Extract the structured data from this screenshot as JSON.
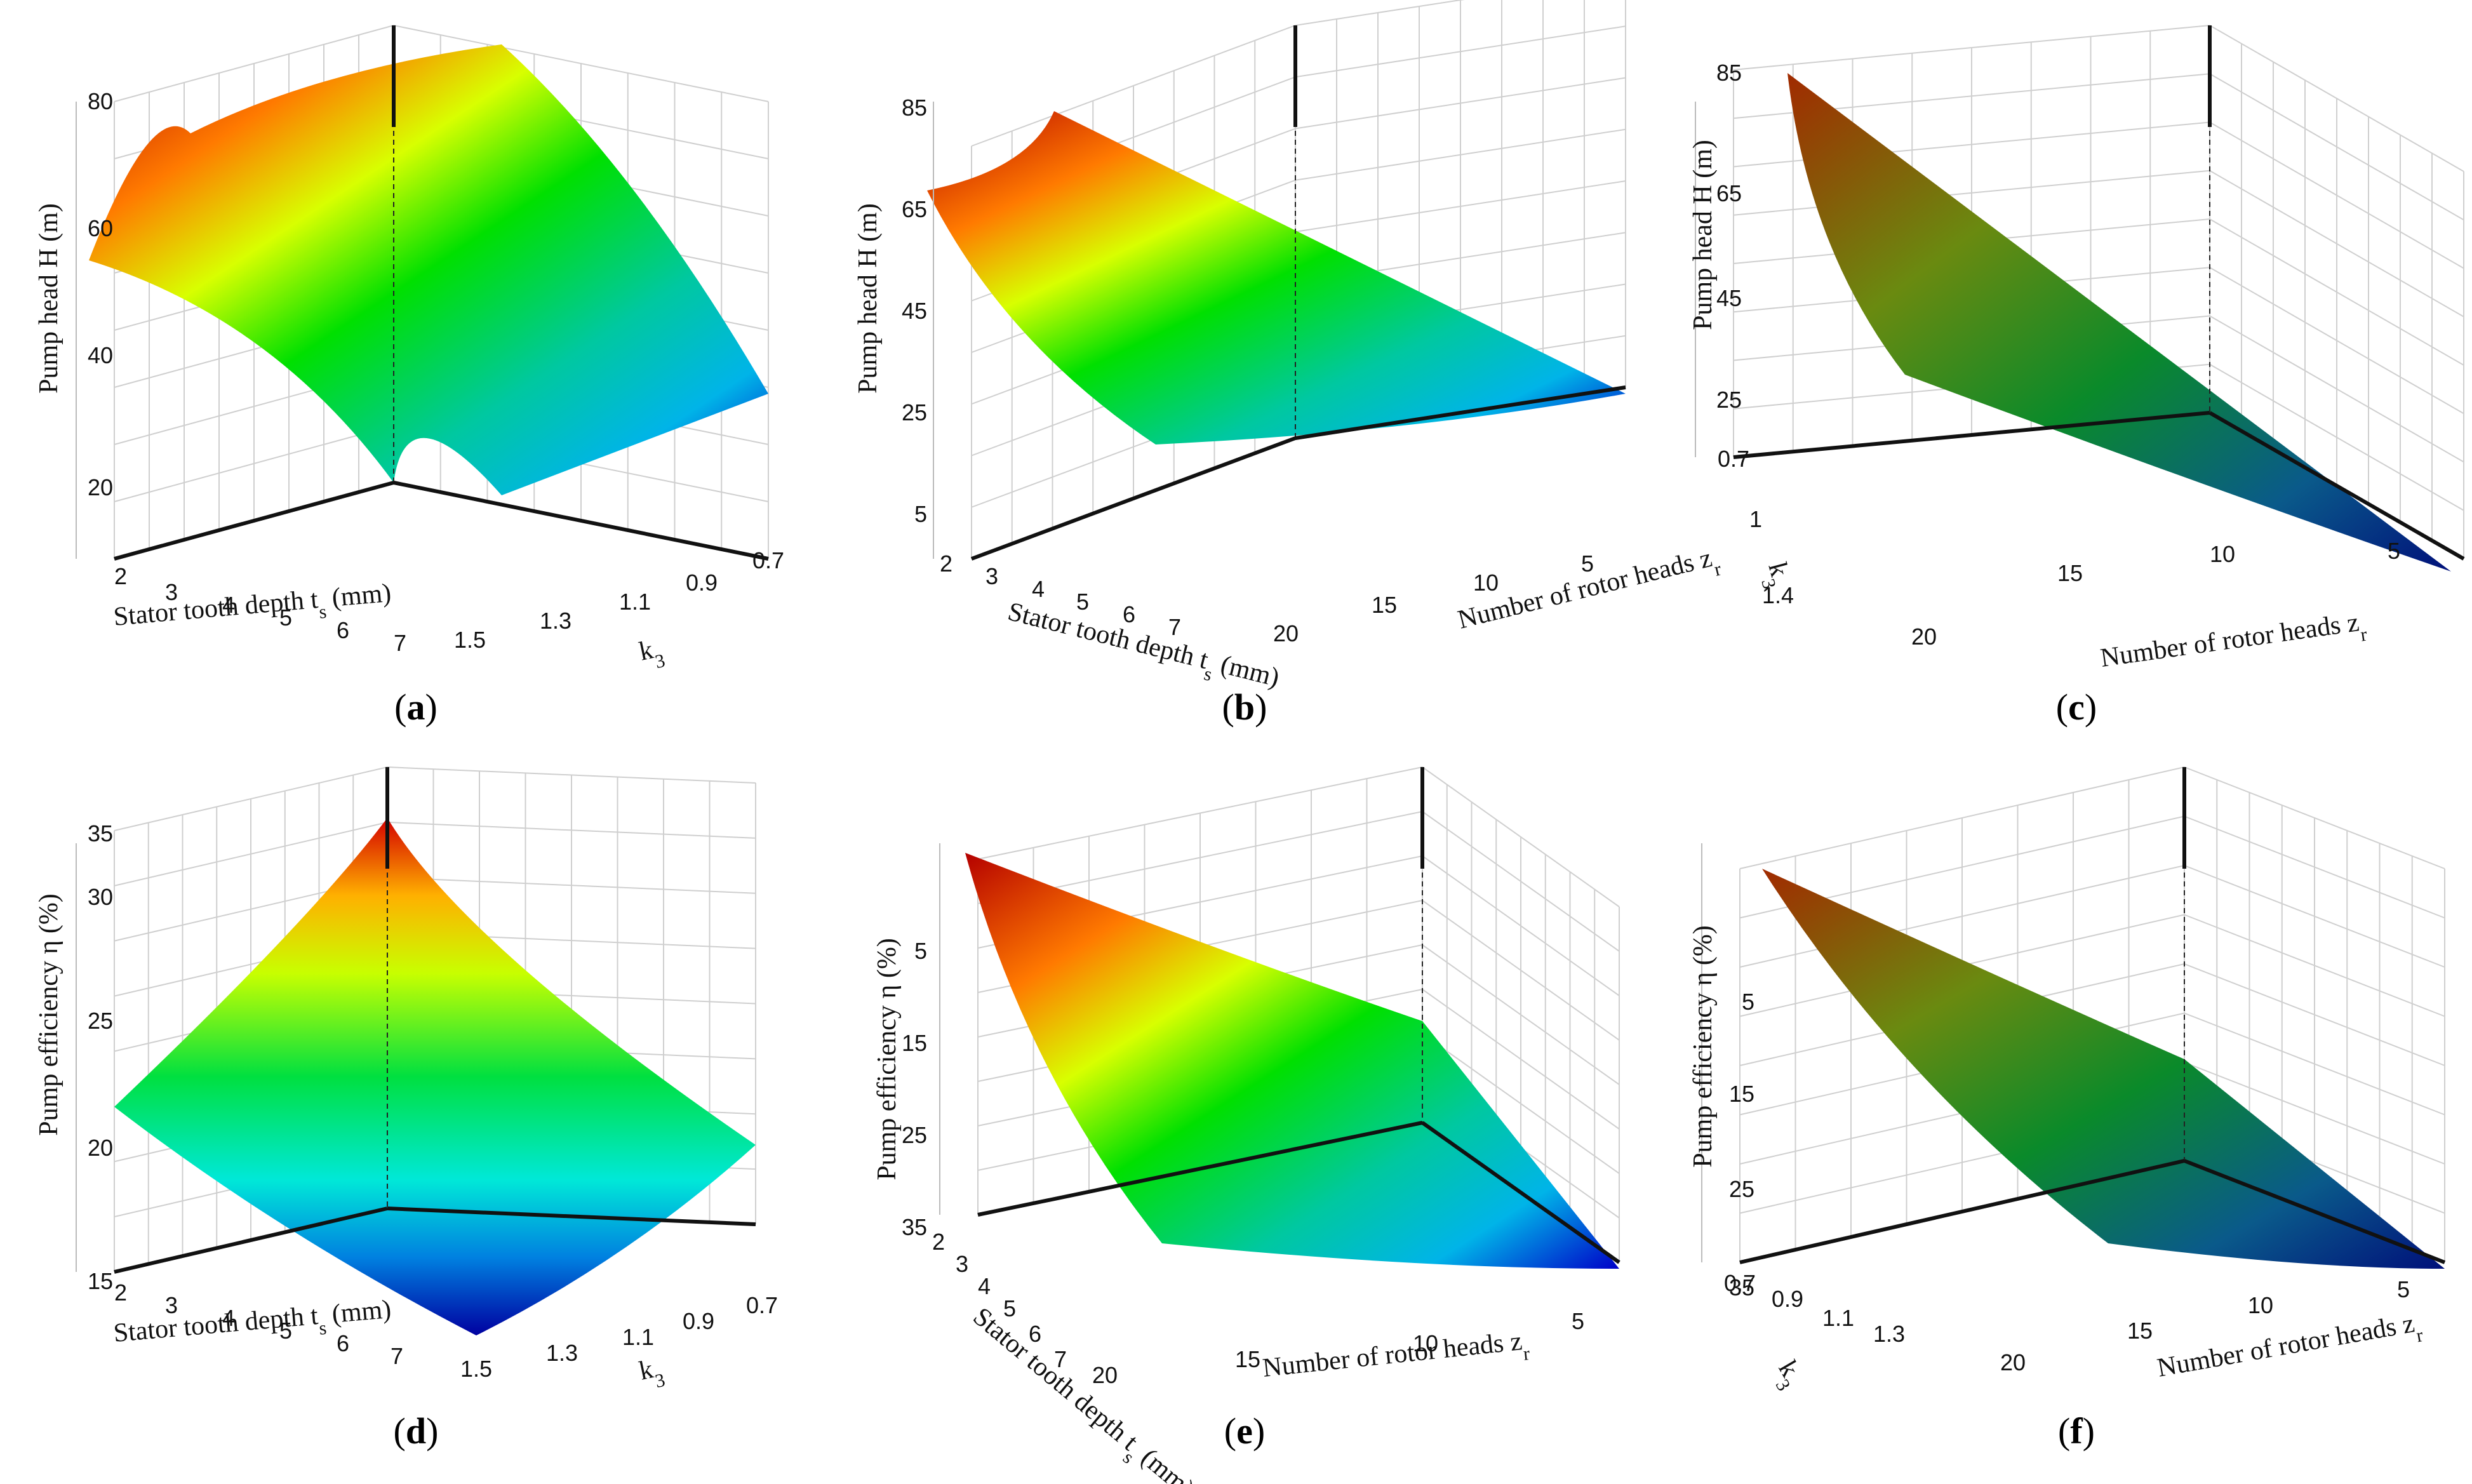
{
  "chart_data": [
    {
      "panel": "a",
      "type": "surface",
      "caption_letter": "a",
      "zlabel": "Pump head H (m)",
      "x_label_main": "Stator tooth depth t",
      "x_label_sub": "s",
      "x_label_tail": " (mm)",
      "y_label_main": "k",
      "y_label_sub": "3",
      "y_label_tail": "",
      "x_ticks": [
        "2",
        "3",
        "4",
        "5",
        "6",
        "7"
      ],
      "y_ticks": [
        "1.5",
        "1.3",
        "1.1",
        "0.9",
        "0.7"
      ],
      "z_ticks": [
        "20",
        "40",
        "60",
        "80"
      ],
      "x_range": [
        2,
        7.5
      ],
      "y_range": [
        1.5,
        0.7
      ],
      "z_range": [
        12,
        88
      ],
      "colormap": "rainbow",
      "summary": "Head rises with k3 toward ~85 m near k3=0.9 at small t_s, falling to ~20 m at large t_s and high k3"
    },
    {
      "panel": "b",
      "type": "surface",
      "caption_letter": "b",
      "zlabel": "Pump head H (m)",
      "x_label_main": "Stator tooth depth t",
      "x_label_sub": "s",
      "x_label_tail": " (mm)",
      "y_label_main": "Number of rotor heads z",
      "y_label_sub": "r",
      "y_label_tail": "",
      "x_ticks": [
        "2",
        "3",
        "4",
        "5",
        "6",
        "7"
      ],
      "y_ticks": [
        "20",
        "15",
        "10",
        "5"
      ],
      "z_ticks": [
        "5",
        "25",
        "45",
        "65",
        "85"
      ],
      "x_range": [
        2,
        7.5
      ],
      "y_range": [
        20,
        3
      ],
      "z_range": [
        0,
        90
      ],
      "colormap": "rainbow",
      "summary": "Head peaks ~85 m at small t_s and few rotor heads, decreasing toward ~25 m"
    },
    {
      "panel": "c",
      "type": "surface",
      "caption_letter": "c",
      "zlabel": "Pump head H (m)",
      "x_label_main": "k",
      "x_label_sub": "3",
      "x_label_tail": "",
      "y_label_main": "Number of rotor heads z",
      "y_label_sub": "r",
      "y_label_tail": "",
      "x_ticks": [
        "0.7",
        "1",
        "1.4"
      ],
      "y_ticks": [
        "20",
        "15",
        "10",
        "5"
      ],
      "z_ticks": [
        "25",
        "45",
        "65",
        "85"
      ],
      "x_range": [
        0.7,
        1.5
      ],
      "y_range": [
        20,
        3
      ],
      "z_range": [
        15,
        88
      ],
      "colormap": "dark-rainbow",
      "summary": "Near-planar surface from ~85 m down to ~10 m"
    },
    {
      "panel": "d",
      "type": "surface",
      "caption_letter": "d",
      "zlabel": "Pump efficiency η (%)",
      "x_label_main": "Stator tooth depth t",
      "x_label_sub": "s",
      "x_label_tail": " (mm)",
      "y_label_main": "k",
      "y_label_sub": "3",
      "y_label_tail": "",
      "x_ticks": [
        "2",
        "3",
        "4",
        "5",
        "6",
        "7"
      ],
      "y_ticks": [
        "1.5",
        "1.3",
        "1.1",
        "0.9",
        "0.7"
      ],
      "z_ticks": [
        "15",
        "20",
        "25",
        "30",
        "35"
      ],
      "x_range": [
        2,
        7.5
      ],
      "y_range": [
        1.5,
        0.7
      ],
      "z_range": [
        11,
        38
      ],
      "colormap": "rainbow",
      "summary": "Saddle-like surface peaking ~38% at back corner, ~11% at front corner"
    },
    {
      "panel": "e",
      "type": "surface",
      "caption_letter": "e",
      "zlabel": "Pump efficiency η (%)",
      "x_label_main": "Stator tooth depth t",
      "x_label_sub": "s",
      "x_label_tail": " (mm)",
      "y_label_main": "Number of rotor heads z",
      "y_label_sub": "r",
      "y_label_tail": "",
      "x_ticks": [
        "2",
        "3",
        "4",
        "5",
        "6",
        "7"
      ],
      "y_ticks": [
        "20",
        "15",
        "10",
        "5"
      ],
      "z_ticks": [
        "5",
        "15",
        "25",
        "35"
      ],
      "x_range": [
        2,
        7.5
      ],
      "y_range": [
        20,
        3
      ],
      "z_range": [
        0,
        40
      ],
      "colormap": "rainbow",
      "summary": "Efficiency ~40% at small t_s & z_r=20, dropping near 0 at large t_s"
    },
    {
      "panel": "f",
      "type": "surface",
      "caption_letter": "f",
      "zlabel": "Pump efficiency  η (%)",
      "x_label_main": "k",
      "x_label_sub": "3",
      "x_label_tail": "",
      "y_label_main": "Number of rotor heads z",
      "y_label_sub": "r",
      "y_label_tail": "",
      "x_ticks": [
        "0.7",
        "0.9",
        "1.1",
        "1.3"
      ],
      "y_ticks": [
        "20",
        "15",
        "10",
        "5"
      ],
      "z_ticks": [
        "5",
        "15",
        "25",
        "35"
      ],
      "x_range": [
        0.7,
        1.4
      ],
      "y_range": [
        20,
        3
      ],
      "z_range": [
        0,
        40
      ],
      "colormap": "dark-rainbow",
      "summary": "Efficiency ~40% at k3=0.7, decreasing to ~1%"
    }
  ]
}
